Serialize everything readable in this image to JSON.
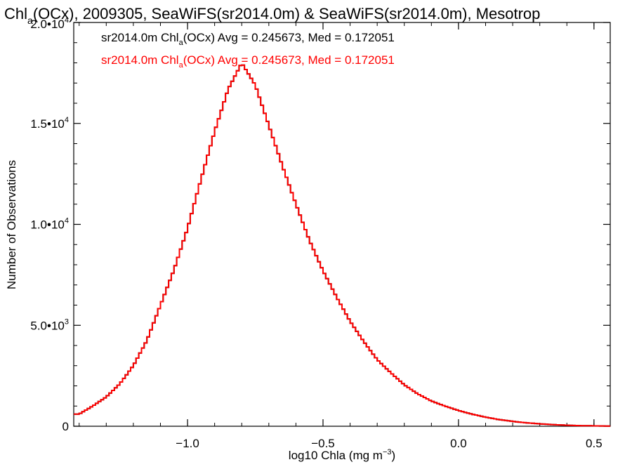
{
  "chart_data": {
    "type": "step",
    "title_parts": [
      "Chl",
      "a",
      "(OCx), 2009305, SeaWiFS(sr2014.0m) & SeaWiFS(sr2014.0m), Mesotrop"
    ],
    "xlabel_parts": [
      "log10 Chla (mg m",
      "−3",
      ")"
    ],
    "ylabel": "Number of Observations",
    "xlim": [
      -1.42,
      0.56
    ],
    "ylim": [
      0,
      20000
    ],
    "xticks": [
      {
        "value": -1.0,
        "label": "−1.0"
      },
      {
        "value": -0.5,
        "label": "−0.5"
      },
      {
        "value": 0.0,
        "label": "0.0"
      },
      {
        "value": 0.5,
        "label": "0.5"
      }
    ],
    "yticks": [
      {
        "value": 0,
        "base": "0",
        "exp": ""
      },
      {
        "value": 5000,
        "base": "5.0•10",
        "exp": "3"
      },
      {
        "value": 10000,
        "base": "1.0•10",
        "exp": "4"
      },
      {
        "value": 15000,
        "base": "1.5•10",
        "exp": "4"
      },
      {
        "value": 20000,
        "base": "2.0•10",
        "exp": "4"
      }
    ],
    "legend_placement": "top-left",
    "series": [
      {
        "name_parts": [
          "sr2014.0m Chl",
          "a",
          "(OCx) Avg = 0.245673, Med = 0.172051"
        ],
        "color": "#000000"
      },
      {
        "name_parts": [
          "sr2014.0m Chl",
          "a",
          "(OCx) Avg = 0.245673, Med = 0.172051"
        ],
        "color": "#ff0000"
      }
    ],
    "x": [
      -1.4,
      -1.35,
      -1.3,
      -1.25,
      -1.2,
      -1.15,
      -1.1,
      -1.05,
      -1.0,
      -0.95,
      -0.9,
      -0.85,
      -0.8,
      -0.75,
      -0.7,
      -0.65,
      -0.6,
      -0.55,
      -0.5,
      -0.45,
      -0.4,
      -0.35,
      -0.3,
      -0.25,
      -0.2,
      -0.15,
      -0.1,
      -0.05,
      0.0,
      0.05,
      0.1,
      0.15,
      0.2,
      0.25,
      0.3,
      0.35,
      0.4,
      0.45,
      0.5,
      0.55
    ],
    "y": [
      600,
      1000,
      1450,
      2100,
      3000,
      4250,
      6000,
      7750,
      9800,
      12250,
      14600,
      16700,
      18000,
      16900,
      14900,
      12900,
      11000,
      9200,
      7700,
      6400,
      5200,
      4200,
      3300,
      2650,
      2050,
      1600,
      1250,
      1000,
      780,
      600,
      450,
      330,
      240,
      170,
      120,
      80,
      50,
      30,
      20,
      10
    ]
  }
}
